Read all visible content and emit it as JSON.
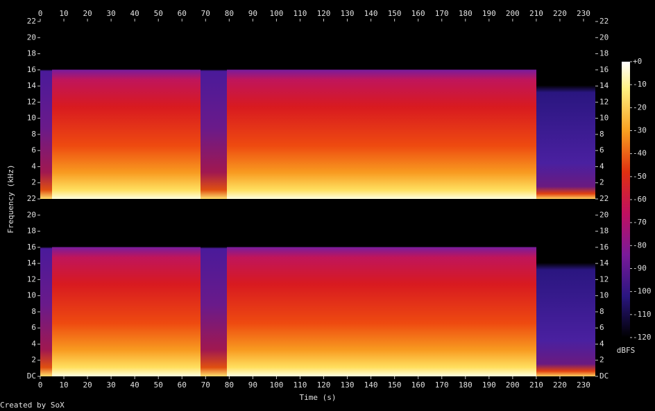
{
  "chart_data": {
    "type": "spectrogram",
    "xlabel": "Time (s)",
    "ylabel": "Frequency (kHz)",
    "xlim": [
      0,
      235
    ],
    "xticks": [
      0,
      10,
      20,
      30,
      40,
      50,
      60,
      70,
      80,
      90,
      100,
      110,
      120,
      130,
      140,
      150,
      160,
      170,
      180,
      190,
      200,
      210,
      220,
      230
    ],
    "channels": [
      {
        "ylim": [
          0,
          22
        ],
        "yticks": [
          2,
          4,
          6,
          8,
          10,
          12,
          14,
          16,
          18,
          20,
          22
        ]
      },
      {
        "ylim": [
          0,
          22
        ],
        "yticks": [
          {
            "value": 0,
            "label": "DC"
          },
          2,
          4,
          6,
          8,
          10,
          12,
          14,
          16,
          18,
          20,
          22
        ]
      }
    ],
    "colorbar": {
      "label": "dBFS",
      "lim": [
        -120,
        0
      ],
      "ticks": [
        {
          "value": 0,
          "label": "+0"
        },
        -10,
        -20,
        -30,
        -40,
        -50,
        -60,
        -70,
        -80,
        -90,
        -100,
        -110,
        -120
      ]
    },
    "footer": "Created by SoX"
  }
}
